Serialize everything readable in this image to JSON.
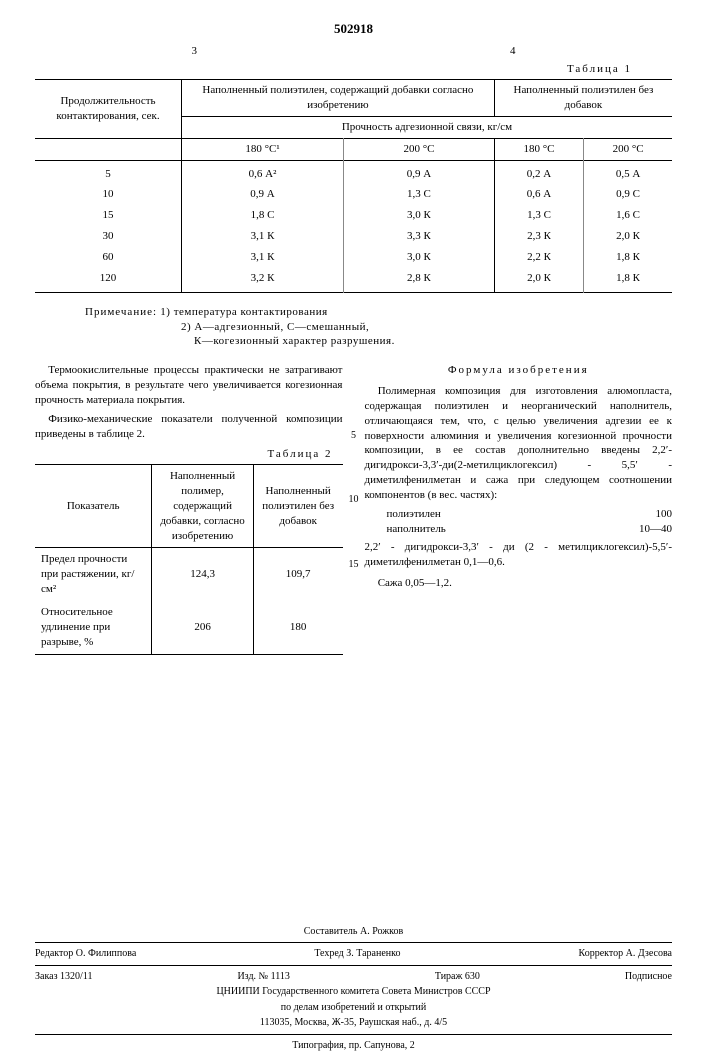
{
  "patent_number": "502918",
  "page_left": "3",
  "page_right": "4",
  "table1": {
    "label": "Таблица 1",
    "col_rowhead1": "Продолжительность",
    "col_rowhead2": "контактирования, сек.",
    "group1": "Наполненный полиэтилен, содержащий добавки согласно изобретению",
    "group2": "Наполненный полиэтилен без добавок",
    "subhead": "Прочность адгезионной связи, кг/см",
    "cols": [
      "180 °C¹",
      "200 °C",
      "180 °C",
      "200 °C"
    ],
    "rows": [
      [
        "5",
        "0,6 А²",
        "0,9 А",
        "0,2 А",
        "0,5 А"
      ],
      [
        "10",
        "0,9 А",
        "1,3 С",
        "0,6 А",
        "0,9 С"
      ],
      [
        "15",
        "1,8 С",
        "3,0 К",
        "1,3 С",
        "1,6 С"
      ],
      [
        "30",
        "3,1 К",
        "3,3 К",
        "2,3 К",
        "2,0 К"
      ],
      [
        "60",
        "3,1 К",
        "3,0 К",
        "2,2 К",
        "1,8 К"
      ],
      [
        "120",
        "3,2 К",
        "2,8 К",
        "2,0 К",
        "1,8 К"
      ]
    ],
    "note_label": "Примечание:",
    "note1": "1) температура контактирования",
    "note2": "2) А—адгезионный, С—смешанный,",
    "note3": "К—когезионный характер разрушения."
  },
  "para1": "Термоокислительные процессы практически не затрагивают объема покрытия, в результате чего увеличивается когезионная прочность материала покрытия.",
  "para2": "Физико-механические показатели полученной композиции приведены в таблице 2.",
  "table2": {
    "label": "Таблица 2",
    "head1": "Показатель",
    "head2": "Наполненный полимер, содержащий добавки, согласно изобретению",
    "head3": "Наполненный полиэтилен без добавок",
    "rows": [
      [
        "Предел прочности при растяжении, кг/см²",
        "124,3",
        "109,7"
      ],
      [
        "Относительное удлинение при разрыве, %",
        "206",
        "180"
      ]
    ]
  },
  "formula": {
    "title": "Формула изобретения",
    "body": "Полимерная композиция для изготовления алюмопласта, содержащая полиэтилен и неорганический наполнитель, отличающаяся тем, что, с целью увеличения адгезии ее к поверхности алюминия и увеличения когезионной прочности композиции, в ее состав дополнительно введены 2,2′-дигидрокси-3,3′-ди(2-метилциклогексил) - 5,5′ - диметилфенилметан и сажа при следующем соотношении компонентов (в вес. частях):",
    "comp1_name": "полиэтилен",
    "comp1_val": "100",
    "comp2_name": "наполнитель",
    "comp2_val": "10—40",
    "line2": "2,2′ - дигидрокси-3,3′ - ди (2 - метилциклогексил)-5,5′-диметилфенилметан 0,1—0,6.",
    "saza": "Сажа 0,05—1,2."
  },
  "line_nums": {
    "n5": "5",
    "n10": "10",
    "n15": "15"
  },
  "footer": {
    "compiler": "Составитель А. Рожков",
    "editor": "Редактор О. Филиппова",
    "tech": "Техред З. Тараненко",
    "corrector": "Корректор А. Дзесова",
    "order": "Заказ 1320/11",
    "izd": "Изд. № 1113",
    "tiraz": "Тираж 630",
    "sub": "Подписное",
    "org1": "ЦНИИПИ Государственного комитета Совета Министров СССР",
    "org2": "по делам изобретений и открытий",
    "addr": "113035, Москва, Ж-35, Раушская наб., д. 4/5",
    "typo": "Типография, пр. Сапунова, 2"
  }
}
